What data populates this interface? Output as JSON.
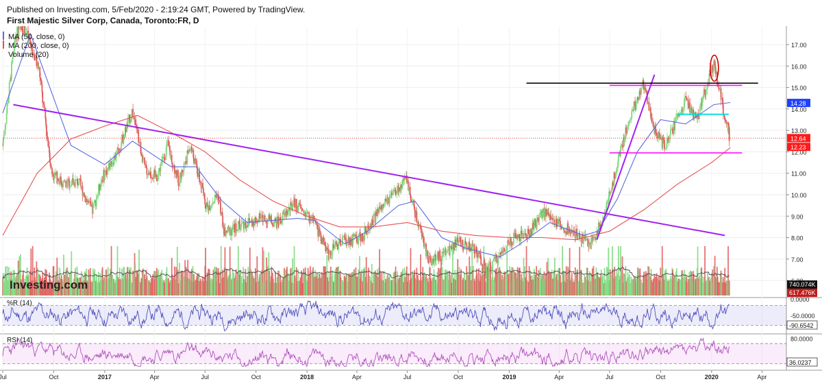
{
  "header": {
    "publish_line": "Published on Investing.com, 5/Feb/2020 - 2:19:24 GMT, Powered by TradingView.",
    "title": "First Majestic Silver Corp, Canada, Toronto:FR, D"
  },
  "legend": [
    "MA (50, close, 0)",
    "MA (200, close, 0)",
    "Volume (20)"
  ],
  "watermark": "Investing.com",
  "colors": {
    "up": "#7dd87d",
    "down": "#e05a5a",
    "ma50": "#5b6be0",
    "ma200": "#e85050",
    "trendline": "#a020f0",
    "resistance": "#000000",
    "channel": "#ff00ff",
    "mid_level": "#00dede",
    "oscillator": "#4f4fbf",
    "rsi": "#b04fc0",
    "circle": "#d00000"
  },
  "chart_data": [
    {
      "type": "candlestick",
      "panel": "price",
      "x_tick_labels": [
        "Jul",
        "Oct",
        "2017",
        "Apr",
        "Jul",
        "Oct",
        "2018",
        "Apr",
        "Jul",
        "Oct",
        "2019",
        "Apr",
        "Jul",
        "Oct",
        "2020",
        "Apr"
      ],
      "x_range": [
        "2016-07-01",
        "2020-05-15"
      ],
      "y_tick_labels": [
        "6.00",
        "7.00",
        "8.00",
        "9.00",
        "10.00",
        "11.00",
        "12.00",
        "13.00",
        "14.00",
        "15.00",
        "16.00",
        "17.00"
      ],
      "ylim": [
        5.3,
        17.8
      ],
      "price_path": [
        {
          "x": "2016-07-01",
          "y": 12.3
        },
        {
          "x": "2016-07-25",
          "y": 17.5
        },
        {
          "x": "2016-08-10",
          "y": 17.8
        },
        {
          "x": "2016-09-05",
          "y": 15.8
        },
        {
          "x": "2016-09-28",
          "y": 11.0
        },
        {
          "x": "2016-10-20",
          "y": 10.5
        },
        {
          "x": "2016-11-15",
          "y": 10.6
        },
        {
          "x": "2016-12-10",
          "y": 9.2
        },
        {
          "x": "2016-12-28",
          "y": 10.8
        },
        {
          "x": "2017-01-25",
          "y": 12.0
        },
        {
          "x": "2017-02-20",
          "y": 13.9
        },
        {
          "x": "2017-03-15",
          "y": 11.2
        },
        {
          "x": "2017-04-05",
          "y": 10.8
        },
        {
          "x": "2017-04-25",
          "y": 12.3
        },
        {
          "x": "2017-05-15",
          "y": 10.6
        },
        {
          "x": "2017-06-05",
          "y": 12.3
        },
        {
          "x": "2017-07-05",
          "y": 9.4
        },
        {
          "x": "2017-07-25",
          "y": 10.0
        },
        {
          "x": "2017-08-05",
          "y": 8.2
        },
        {
          "x": "2017-09-05",
          "y": 8.6
        },
        {
          "x": "2017-10-10",
          "y": 8.9
        },
        {
          "x": "2017-11-10",
          "y": 8.7
        },
        {
          "x": "2017-12-10",
          "y": 9.6
        },
        {
          "x": "2018-01-15",
          "y": 8.7
        },
        {
          "x": "2018-02-10",
          "y": 7.2
        },
        {
          "x": "2018-03-01",
          "y": 7.8
        },
        {
          "x": "2018-04-10",
          "y": 8.0
        },
        {
          "x": "2018-05-10",
          "y": 9.2
        },
        {
          "x": "2018-06-10",
          "y": 10.1
        },
        {
          "x": "2018-07-01",
          "y": 10.7
        },
        {
          "x": "2018-07-20",
          "y": 8.7
        },
        {
          "x": "2018-08-10",
          "y": 6.9
        },
        {
          "x": "2018-09-05",
          "y": 7.2
        },
        {
          "x": "2018-10-01",
          "y": 7.8
        },
        {
          "x": "2018-11-01",
          "y": 7.5
        },
        {
          "x": "2018-11-20",
          "y": 6.4
        },
        {
          "x": "2018-12-10",
          "y": 7.0
        },
        {
          "x": "2019-01-05",
          "y": 7.9
        },
        {
          "x": "2019-02-05",
          "y": 8.2
        },
        {
          "x": "2019-03-05",
          "y": 9.2
        },
        {
          "x": "2019-04-01",
          "y": 8.6
        },
        {
          "x": "2019-05-01",
          "y": 8.2
        },
        {
          "x": "2019-05-28",
          "y": 7.7
        },
        {
          "x": "2019-06-15",
          "y": 8.6
        },
        {
          "x": "2019-07-05",
          "y": 10.3
        },
        {
          "x": "2019-07-25",
          "y": 12.5
        },
        {
          "x": "2019-08-10",
          "y": 13.8
        },
        {
          "x": "2019-09-01",
          "y": 15.2
        },
        {
          "x": "2019-09-20",
          "y": 13.0
        },
        {
          "x": "2019-10-10",
          "y": 12.2
        },
        {
          "x": "2019-10-25",
          "y": 13.2
        },
        {
          "x": "2019-11-15",
          "y": 14.4
        },
        {
          "x": "2019-12-05",
          "y": 13.4
        },
        {
          "x": "2019-12-20",
          "y": 14.8
        },
        {
          "x": "2020-01-06",
          "y": 16.2
        },
        {
          "x": "2020-01-20",
          "y": 14.3
        },
        {
          "x": "2020-02-04",
          "y": 12.6
        }
      ],
      "ma50_path": [
        {
          "x": "2016-07-01",
          "y": 13.8
        },
        {
          "x": "2016-08-20",
          "y": 17.5
        },
        {
          "x": "2016-10-01",
          "y": 14.5
        },
        {
          "x": "2016-11-01",
          "y": 12.3
        },
        {
          "x": "2017-01-01",
          "y": 11.4
        },
        {
          "x": "2017-02-20",
          "y": 12.5
        },
        {
          "x": "2017-05-01",
          "y": 11.3
        },
        {
          "x": "2017-06-15",
          "y": 11.3
        },
        {
          "x": "2017-08-01",
          "y": 9.7
        },
        {
          "x": "2017-09-15",
          "y": 8.7
        },
        {
          "x": "2017-12-15",
          "y": 8.9
        },
        {
          "x": "2018-01-15",
          "y": 8.8
        },
        {
          "x": "2018-03-10",
          "y": 7.7
        },
        {
          "x": "2018-04-20",
          "y": 8.3
        },
        {
          "x": "2018-06-15",
          "y": 9.5
        },
        {
          "x": "2018-07-15",
          "y": 9.7
        },
        {
          "x": "2018-09-01",
          "y": 8.0
        },
        {
          "x": "2018-10-15",
          "y": 7.5
        },
        {
          "x": "2018-12-15",
          "y": 7.1
        },
        {
          "x": "2019-01-15",
          "y": 7.6
        },
        {
          "x": "2019-03-15",
          "y": 8.7
        },
        {
          "x": "2019-05-15",
          "y": 8.1
        },
        {
          "x": "2019-06-10",
          "y": 8.3
        },
        {
          "x": "2019-07-15",
          "y": 9.8
        },
        {
          "x": "2019-08-20",
          "y": 12.0
        },
        {
          "x": "2019-10-01",
          "y": 13.5
        },
        {
          "x": "2019-11-15",
          "y": 13.3
        },
        {
          "x": "2020-01-05",
          "y": 14.2
        },
        {
          "x": "2020-02-04",
          "y": 14.3
        }
      ],
      "ma200_path": [
        {
          "x": "2016-07-01",
          "y": 8.1
        },
        {
          "x": "2016-09-01",
          "y": 11.0
        },
        {
          "x": "2016-11-01",
          "y": 12.6
        },
        {
          "x": "2017-01-01",
          "y": 13.2
        },
        {
          "x": "2017-03-01",
          "y": 13.7
        },
        {
          "x": "2017-05-01",
          "y": 12.9
        },
        {
          "x": "2017-07-01",
          "y": 12.0
        },
        {
          "x": "2017-09-01",
          "y": 10.7
        },
        {
          "x": "2017-11-01",
          "y": 9.7
        },
        {
          "x": "2018-01-01",
          "y": 9.0
        },
        {
          "x": "2018-03-01",
          "y": 8.5
        },
        {
          "x": "2018-05-01",
          "y": 8.5
        },
        {
          "x": "2018-07-01",
          "y": 8.7
        },
        {
          "x": "2018-09-01",
          "y": 8.3
        },
        {
          "x": "2018-11-01",
          "y": 8.1
        },
        {
          "x": "2019-01-01",
          "y": 8.0
        },
        {
          "x": "2019-03-01",
          "y": 8.0
        },
        {
          "x": "2019-05-01",
          "y": 7.9
        },
        {
          "x": "2019-07-01",
          "y": 8.3
        },
        {
          "x": "2019-09-01",
          "y": 9.3
        },
        {
          "x": "2019-11-01",
          "y": 10.5
        },
        {
          "x": "2020-01-01",
          "y": 11.5
        },
        {
          "x": "2020-02-04",
          "y": 12.2
        }
      ],
      "annotations": [
        {
          "kind": "trendline",
          "from": {
            "x": "2016-07-20",
            "y": 14.2
          },
          "to": {
            "x": "2020-01-25",
            "y": 8.1
          }
        },
        {
          "kind": "trendline",
          "from": {
            "x": "2019-06-08",
            "y": 7.9
          },
          "to": {
            "x": "2019-09-20",
            "y": 15.6
          }
        },
        {
          "kind": "horizontal",
          "y": 15.2,
          "from": "2019-02-01",
          "to": "2020-03-25"
        },
        {
          "kind": "horizontal",
          "y": 15.1,
          "from": "2019-07-01",
          "to": "2020-02-25"
        },
        {
          "kind": "horizontal",
          "y": 11.95,
          "from": "2019-07-01",
          "to": "2020-02-25"
        },
        {
          "kind": "horizontal",
          "y": 13.75,
          "from": "2019-11-01",
          "to": "2020-02-01"
        },
        {
          "kind": "horizontal-dotted",
          "y": 12.64,
          "from": "2016-07-01",
          "to": "2020-05-15"
        },
        {
          "kind": "circle",
          "x": "2020-01-06",
          "y": 15.9
        }
      ],
      "price_badges": [
        {
          "value": "14.28",
          "y": 14.28,
          "color": "#1e40ff"
        },
        {
          "value": "12.64",
          "y": 12.64,
          "color": "#ff1a1a"
        },
        {
          "value": "12.23",
          "y": 12.23,
          "color": "#ff1a1a"
        }
      ],
      "volume_badges": [
        {
          "value": "740.074K",
          "color": "#111111"
        },
        {
          "value": "617.476K",
          "color": "#c01c1c"
        }
      ]
    },
    {
      "type": "line",
      "panel": "oscillator",
      "title": "%R (14)",
      "y_tick_labels": [
        "0.0000",
        "-50.0000"
      ],
      "ylim": [
        -100,
        0
      ],
      "levels": [
        -20,
        -80
      ],
      "last_value": "-90.6542"
    },
    {
      "type": "line",
      "panel": "rsi",
      "title": "RSI (14)",
      "y_tick_labels": [
        "80.0000"
      ],
      "ylim": [
        20,
        85
      ],
      "levels": [
        70,
        30
      ],
      "last_value": "36.0237"
    }
  ]
}
